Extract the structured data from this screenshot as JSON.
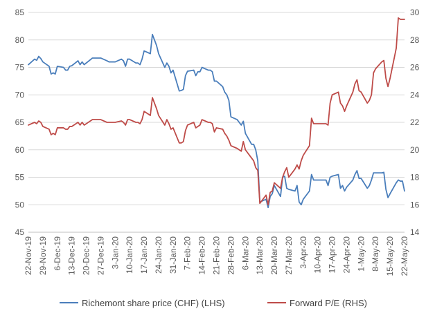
{
  "chart_data": {
    "type": "line",
    "title": "",
    "xlabel": "",
    "ylabel": "",
    "y_left_lim": [
      45,
      85
    ],
    "y_left_ticks": [
      "45",
      "50",
      "55",
      "60",
      "65",
      "70",
      "75",
      "80",
      "85"
    ],
    "y_right_lim": [
      14,
      30
    ],
    "y_right_ticks": [
      "14",
      "16",
      "18",
      "20",
      "22",
      "24",
      "26",
      "28",
      "30"
    ],
    "x_start": "2019-11-22",
    "x_end": "2020-05-22",
    "x_tick_labels": [
      "22-Nov-19",
      "29-Nov-19",
      "6-Dec-19",
      "13-Dec-19",
      "20-Dec-19",
      "27-Dec-19",
      "3-Jan-20",
      "10-Jan-20",
      "17-Jan-20",
      "24-Jan-20",
      "31-Jan-20",
      "7-Feb-20",
      "14-Feb-20",
      "21-Feb-20",
      "28-Feb-20",
      "6-Mar-20",
      "13-Mar-20",
      "20-Mar-20",
      "27-Mar-20",
      "3-Apr-20",
      "10-Apr-20",
      "17-Apr-20",
      "24-Apr-20",
      "1-May-20",
      "8-May-20",
      "15-May-20",
      "22-May-20"
    ],
    "grid": "horizontal",
    "legend_position": "bottom",
    "series": [
      {
        "name": "Richemont share price (CHF) (LHS)",
        "axis": "left",
        "color": "#4a7ebb",
        "points": [
          [
            "2019-11-22",
            75.5
          ],
          [
            "2019-11-25",
            76.5
          ],
          [
            "2019-11-26",
            76.3
          ],
          [
            "2019-11-27",
            77.0
          ],
          [
            "2019-11-28",
            76.6
          ],
          [
            "2019-11-29",
            76.0
          ],
          [
            "2019-12-02",
            75.2
          ],
          [
            "2019-12-03",
            73.8
          ],
          [
            "2019-12-04",
            74.0
          ],
          [
            "2019-12-05",
            73.8
          ],
          [
            "2019-12-06",
            75.2
          ],
          [
            "2019-12-09",
            75.0
          ],
          [
            "2019-12-10",
            74.5
          ],
          [
            "2019-12-11",
            74.5
          ],
          [
            "2019-12-12",
            75.2
          ],
          [
            "2019-12-13",
            75.3
          ],
          [
            "2019-12-16",
            76.2
          ],
          [
            "2019-12-17",
            75.5
          ],
          [
            "2019-12-18",
            76.0
          ],
          [
            "2019-12-19",
            75.5
          ],
          [
            "2019-12-20",
            75.8
          ],
          [
            "2019-12-23",
            76.7
          ],
          [
            "2019-12-27",
            76.7
          ],
          [
            "2019-12-30",
            76.2
          ],
          [
            "2019-12-31",
            76.0
          ],
          [
            "2020-01-03",
            76.0
          ],
          [
            "2020-01-06",
            76.5
          ],
          [
            "2020-01-07",
            76.2
          ],
          [
            "2020-01-08",
            75.2
          ],
          [
            "2020-01-09",
            76.5
          ],
          [
            "2020-01-10",
            76.5
          ],
          [
            "2020-01-13",
            75.8
          ],
          [
            "2020-01-14",
            75.8
          ],
          [
            "2020-01-15",
            75.5
          ],
          [
            "2020-01-16",
            76.5
          ],
          [
            "2020-01-17",
            78.0
          ],
          [
            "2020-01-20",
            77.5
          ],
          [
            "2020-01-21",
            81.0
          ],
          [
            "2020-01-22",
            80.0
          ],
          [
            "2020-01-23",
            79.0
          ],
          [
            "2020-01-24",
            77.5
          ],
          [
            "2020-01-27",
            75.0
          ],
          [
            "2020-01-28",
            75.8
          ],
          [
            "2020-01-29",
            75.2
          ],
          [
            "2020-01-30",
            74.0
          ],
          [
            "2020-01-31",
            74.5
          ],
          [
            "2020-02-03",
            70.7
          ],
          [
            "2020-02-04",
            70.8
          ],
          [
            "2020-02-05",
            71.0
          ],
          [
            "2020-02-06",
            73.5
          ],
          [
            "2020-02-07",
            74.3
          ],
          [
            "2020-02-10",
            74.5
          ],
          [
            "2020-02-11",
            73.5
          ],
          [
            "2020-02-12",
            74.2
          ],
          [
            "2020-02-13",
            74.2
          ],
          [
            "2020-02-14",
            75.0
          ],
          [
            "2020-02-17",
            74.5
          ],
          [
            "2020-02-18",
            74.5
          ],
          [
            "2020-02-19",
            74.2
          ],
          [
            "2020-02-20",
            72.5
          ],
          [
            "2020-02-21",
            72.5
          ],
          [
            "2020-02-24",
            71.5
          ],
          [
            "2020-02-25",
            70.5
          ],
          [
            "2020-02-26",
            70.0
          ],
          [
            "2020-02-27",
            69.0
          ],
          [
            "2020-02-28",
            66.0
          ],
          [
            "2020-03-02",
            65.5
          ],
          [
            "2020-03-03",
            65.0
          ],
          [
            "2020-03-04",
            64.5
          ],
          [
            "2020-03-05",
            65.2
          ],
          [
            "2020-03-06",
            63.0
          ],
          [
            "2020-03-09",
            61.0
          ],
          [
            "2020-03-10",
            61.0
          ],
          [
            "2020-03-11",
            60.0
          ],
          [
            "2020-03-12",
            58.0
          ],
          [
            "2020-03-13",
            50.5
          ],
          [
            "2020-03-16",
            51.0
          ],
          [
            "2020-03-17",
            49.5
          ],
          [
            "2020-03-18",
            51.5
          ],
          [
            "2020-03-19",
            52.0
          ],
          [
            "2020-03-20",
            53.5
          ],
          [
            "2020-03-23",
            51.5
          ],
          [
            "2020-03-24",
            55.0
          ],
          [
            "2020-03-25",
            55.2
          ],
          [
            "2020-03-26",
            53.0
          ],
          [
            "2020-03-27",
            52.8
          ],
          [
            "2020-03-30",
            52.5
          ],
          [
            "2020-03-31",
            53.5
          ],
          [
            "2020-04-01",
            50.5
          ],
          [
            "2020-04-02",
            50.0
          ],
          [
            "2020-04-03",
            51.0
          ],
          [
            "2020-04-06",
            52.5
          ],
          [
            "2020-04-07",
            55.5
          ],
          [
            "2020-04-08",
            54.5
          ],
          [
            "2020-04-09",
            54.5
          ],
          [
            "2020-04-14",
            54.5
          ],
          [
            "2020-04-15",
            53.5
          ],
          [
            "2020-04-16",
            55.0
          ],
          [
            "2020-04-17",
            55.2
          ],
          [
            "2020-04-20",
            55.5
          ],
          [
            "2020-04-21",
            53.0
          ],
          [
            "2020-04-22",
            53.5
          ],
          [
            "2020-04-23",
            52.5
          ],
          [
            "2020-04-24",
            53.2
          ],
          [
            "2020-04-27",
            54.5
          ],
          [
            "2020-04-28",
            55.5
          ],
          [
            "2020-04-29",
            56.2
          ],
          [
            "2020-04-30",
            54.8
          ],
          [
            "2020-05-01",
            54.8
          ],
          [
            "2020-05-04",
            53.0
          ],
          [
            "2020-05-05",
            53.5
          ],
          [
            "2020-05-06",
            54.5
          ],
          [
            "2020-05-07",
            55.8
          ],
          [
            "2020-05-08",
            55.8
          ],
          [
            "2020-05-11",
            55.8
          ],
          [
            "2020-05-12",
            55.9
          ],
          [
            "2020-05-13",
            52.8
          ],
          [
            "2020-05-14",
            51.3
          ],
          [
            "2020-05-15",
            52.0
          ],
          [
            "2020-05-18",
            54.0
          ],
          [
            "2020-05-19",
            54.5
          ],
          [
            "2020-05-20",
            54.3
          ],
          [
            "2020-05-21",
            54.3
          ],
          [
            "2020-05-22",
            52.5
          ]
        ]
      },
      {
        "name": "Forward P/E (RHS)",
        "axis": "right",
        "color": "#be4b48",
        "points": [
          [
            "2019-11-22",
            21.8
          ],
          [
            "2019-11-25",
            22.0
          ],
          [
            "2019-11-26",
            21.9
          ],
          [
            "2019-11-27",
            22.1
          ],
          [
            "2019-11-28",
            22.0
          ],
          [
            "2019-11-29",
            21.7
          ],
          [
            "2019-12-02",
            21.5
          ],
          [
            "2019-12-03",
            21.1
          ],
          [
            "2019-12-04",
            21.2
          ],
          [
            "2019-12-05",
            21.1
          ],
          [
            "2019-12-06",
            21.6
          ],
          [
            "2019-12-09",
            21.6
          ],
          [
            "2019-12-10",
            21.5
          ],
          [
            "2019-12-11",
            21.5
          ],
          [
            "2019-12-12",
            21.7
          ],
          [
            "2019-12-13",
            21.7
          ],
          [
            "2019-12-16",
            22.0
          ],
          [
            "2019-12-17",
            21.8
          ],
          [
            "2019-12-18",
            22.0
          ],
          [
            "2019-12-19",
            21.8
          ],
          [
            "2019-12-20",
            21.9
          ],
          [
            "2019-12-23",
            22.2
          ],
          [
            "2019-12-27",
            22.2
          ],
          [
            "2019-12-30",
            22.0
          ],
          [
            "2019-12-31",
            22.0
          ],
          [
            "2020-01-03",
            22.0
          ],
          [
            "2020-01-06",
            22.1
          ],
          [
            "2020-01-07",
            22.0
          ],
          [
            "2020-01-08",
            21.8
          ],
          [
            "2020-01-09",
            22.2
          ],
          [
            "2020-01-10",
            22.2
          ],
          [
            "2020-01-13",
            22.0
          ],
          [
            "2020-01-14",
            22.0
          ],
          [
            "2020-01-15",
            21.9
          ],
          [
            "2020-01-16",
            22.2
          ],
          [
            "2020-01-17",
            22.8
          ],
          [
            "2020-01-20",
            22.5
          ],
          [
            "2020-01-21",
            23.8
          ],
          [
            "2020-01-22",
            23.4
          ],
          [
            "2020-01-23",
            23.0
          ],
          [
            "2020-01-24",
            22.5
          ],
          [
            "2020-01-27",
            21.8
          ],
          [
            "2020-01-28",
            22.2
          ],
          [
            "2020-01-29",
            21.9
          ],
          [
            "2020-01-30",
            21.5
          ],
          [
            "2020-01-31",
            21.6
          ],
          [
            "2020-02-03",
            20.5
          ],
          [
            "2020-02-04",
            20.5
          ],
          [
            "2020-02-05",
            20.6
          ],
          [
            "2020-02-06",
            21.4
          ],
          [
            "2020-02-07",
            21.8
          ],
          [
            "2020-02-10",
            22.0
          ],
          [
            "2020-02-11",
            21.6
          ],
          [
            "2020-02-12",
            21.7
          ],
          [
            "2020-02-13",
            21.8
          ],
          [
            "2020-02-14",
            22.2
          ],
          [
            "2020-02-17",
            22.0
          ],
          [
            "2020-02-18",
            22.0
          ],
          [
            "2020-02-19",
            21.9
          ],
          [
            "2020-02-20",
            21.3
          ],
          [
            "2020-02-21",
            21.6
          ],
          [
            "2020-02-24",
            21.5
          ],
          [
            "2020-02-25",
            21.2
          ],
          [
            "2020-02-26",
            21.0
          ],
          [
            "2020-02-27",
            20.7
          ],
          [
            "2020-02-28",
            20.3
          ],
          [
            "2020-03-02",
            20.1
          ],
          [
            "2020-03-03",
            20.0
          ],
          [
            "2020-03-04",
            19.9
          ],
          [
            "2020-03-05",
            20.6
          ],
          [
            "2020-03-06",
            20.0
          ],
          [
            "2020-03-09",
            19.4
          ],
          [
            "2020-03-10",
            19.2
          ],
          [
            "2020-03-11",
            18.7
          ],
          [
            "2020-03-12",
            18.5
          ],
          [
            "2020-03-13",
            16.1
          ],
          [
            "2020-03-16",
            16.7
          ],
          [
            "2020-03-17",
            16.0
          ],
          [
            "2020-03-18",
            16.9
          ],
          [
            "2020-03-19",
            17.0
          ],
          [
            "2020-03-20",
            17.6
          ],
          [
            "2020-03-23",
            17.2
          ],
          [
            "2020-03-24",
            18.0
          ],
          [
            "2020-03-25",
            18.4
          ],
          [
            "2020-03-26",
            18.7
          ],
          [
            "2020-03-27",
            18.0
          ],
          [
            "2020-03-30",
            18.6
          ],
          [
            "2020-03-31",
            18.9
          ],
          [
            "2020-04-01",
            18.6
          ],
          [
            "2020-04-02",
            19.2
          ],
          [
            "2020-04-03",
            19.6
          ],
          [
            "2020-04-06",
            20.3
          ],
          [
            "2020-04-07",
            22.3
          ],
          [
            "2020-04-08",
            21.9
          ],
          [
            "2020-04-09",
            21.9
          ],
          [
            "2020-04-14",
            21.9
          ],
          [
            "2020-04-15",
            21.8
          ],
          [
            "2020-04-16",
            23.4
          ],
          [
            "2020-04-17",
            24.0
          ],
          [
            "2020-04-20",
            24.2
          ],
          [
            "2020-04-21",
            23.4
          ],
          [
            "2020-04-22",
            23.2
          ],
          [
            "2020-04-23",
            22.8
          ],
          [
            "2020-04-24",
            23.2
          ],
          [
            "2020-04-27",
            24.2
          ],
          [
            "2020-04-28",
            24.8
          ],
          [
            "2020-04-29",
            25.1
          ],
          [
            "2020-04-30",
            24.3
          ],
          [
            "2020-05-01",
            24.2
          ],
          [
            "2020-05-04",
            23.4
          ],
          [
            "2020-05-05",
            23.6
          ],
          [
            "2020-05-06",
            24.0
          ],
          [
            "2020-05-07",
            25.6
          ],
          [
            "2020-05-08",
            25.9
          ],
          [
            "2020-05-11",
            26.4
          ],
          [
            "2020-05-12",
            26.5
          ],
          [
            "2020-05-13",
            25.2
          ],
          [
            "2020-05-14",
            24.6
          ],
          [
            "2020-05-15",
            25.2
          ],
          [
            "2020-05-18",
            27.4
          ],
          [
            "2020-05-19",
            29.6
          ],
          [
            "2020-05-20",
            29.5
          ],
          [
            "2020-05-21",
            29.5
          ],
          [
            "2020-05-22",
            29.5
          ]
        ]
      }
    ]
  }
}
